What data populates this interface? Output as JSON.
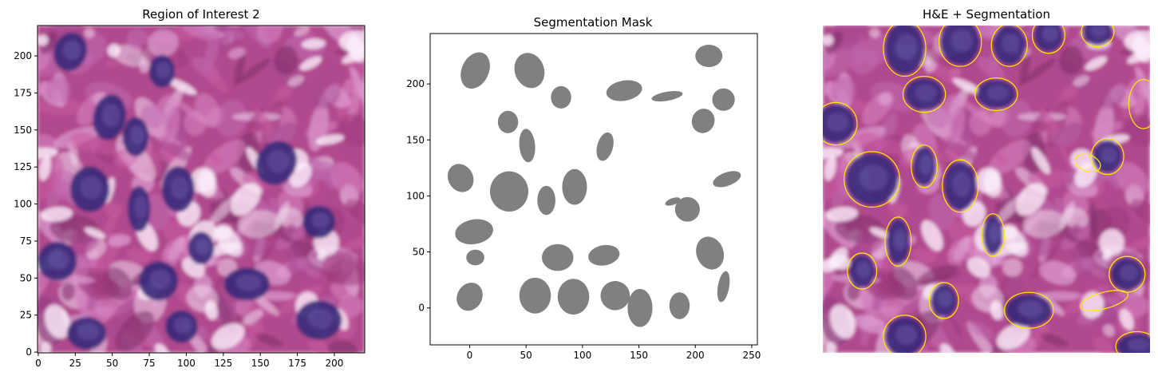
{
  "panels": [
    {
      "title": "Region of Interest 2",
      "x_ticks": [
        "0",
        "25",
        "50",
        "75",
        "100",
        "125",
        "150",
        "175",
        "200"
      ],
      "y_ticks": [
        "0",
        "25",
        "50",
        "75",
        "100",
        "125",
        "150",
        "175",
        "200"
      ]
    },
    {
      "title": "Segmentation Mask",
      "x_ticks": [
        "0",
        "50",
        "100",
        "150",
        "200",
        "250"
      ],
      "y_ticks": [
        "0",
        "50",
        "100",
        "150",
        "200"
      ]
    },
    {
      "title": "H&E + Segmentation"
    }
  ],
  "colors": {
    "mask_fill": "#808080",
    "contour": "#ffee00",
    "tissue_pink": "#b8448a",
    "nucleus_purple": "#3a2a7a"
  }
}
